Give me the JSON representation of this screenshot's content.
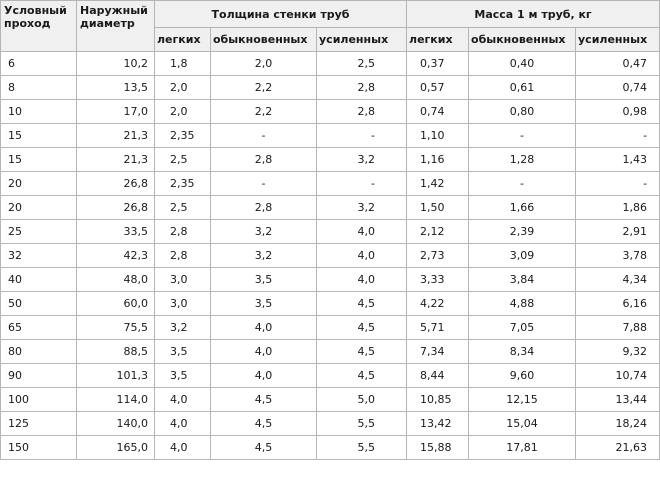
{
  "header": {
    "nominal_bore": "Условный проход",
    "outer_diameter": "Наружный диаметр",
    "wall_thickness": "Толщина стенки труб",
    "mass_per_meter": "Масса 1 м труб, кг",
    "sub": [
      "легких",
      "обыкновенных",
      "усиленных",
      "легких",
      "обыкновенных",
      "усиленных"
    ]
  },
  "rows": [
    [
      "6",
      "10,2",
      "1,8",
      "2,0",
      "2,5",
      "0,37",
      "0,40",
      "0,47"
    ],
    [
      "8",
      "13,5",
      "2,0",
      "2,2",
      "2,8",
      "0,57",
      "0,61",
      "0,74"
    ],
    [
      "10",
      "17,0",
      "2,0",
      "2,2",
      "2,8",
      "0,74",
      "0,80",
      "0,98"
    ],
    [
      "15",
      "21,3",
      "2,35",
      "-",
      "-",
      "1,10",
      "-",
      "-"
    ],
    [
      "15",
      "21,3",
      "2,5",
      "2,8",
      "3,2",
      "1,16",
      "1,28",
      "1,43"
    ],
    [
      "20",
      "26,8",
      "2,35",
      "-",
      "-",
      "1,42",
      "-",
      "-"
    ],
    [
      "20",
      "26,8",
      "2,5",
      "2,8",
      "3,2",
      "1,50",
      "1,66",
      "1,86"
    ],
    [
      "25",
      "33,5",
      "2,8",
      "3,2",
      "4,0",
      "2,12",
      "2,39",
      "2,91"
    ],
    [
      "32",
      "42,3",
      "2,8",
      "3,2",
      "4,0",
      "2,73",
      "3,09",
      "3,78"
    ],
    [
      "40",
      "48,0",
      "3,0",
      "3,5",
      "4,0",
      "3,33",
      "3,84",
      "4,34"
    ],
    [
      "50",
      "60,0",
      "3,0",
      "3,5",
      "4,5",
      "4,22",
      "4,88",
      "6,16"
    ],
    [
      "65",
      "75,5",
      "3,2",
      "4,0",
      "4,5",
      "5,71",
      "7,05",
      "7,88"
    ],
    [
      "80",
      "88,5",
      "3,5",
      "4,0",
      "4,5",
      "7,34",
      "8,34",
      "9,32"
    ],
    [
      "90",
      "101,3",
      "3,5",
      "4,0",
      "4,5",
      "8,44",
      "9,60",
      "10,74"
    ],
    [
      "100",
      "114,0",
      "4,0",
      "4,5",
      "5,0",
      "10,85",
      "12,15",
      "13,44"
    ],
    [
      "125",
      "140,0",
      "4,0",
      "4,5",
      "5,5",
      "13,42",
      "15,04",
      "18,24"
    ],
    [
      "150",
      "165,0",
      "4,0",
      "4,5",
      "5,5",
      "15,88",
      "17,81",
      "21,63"
    ]
  ]
}
